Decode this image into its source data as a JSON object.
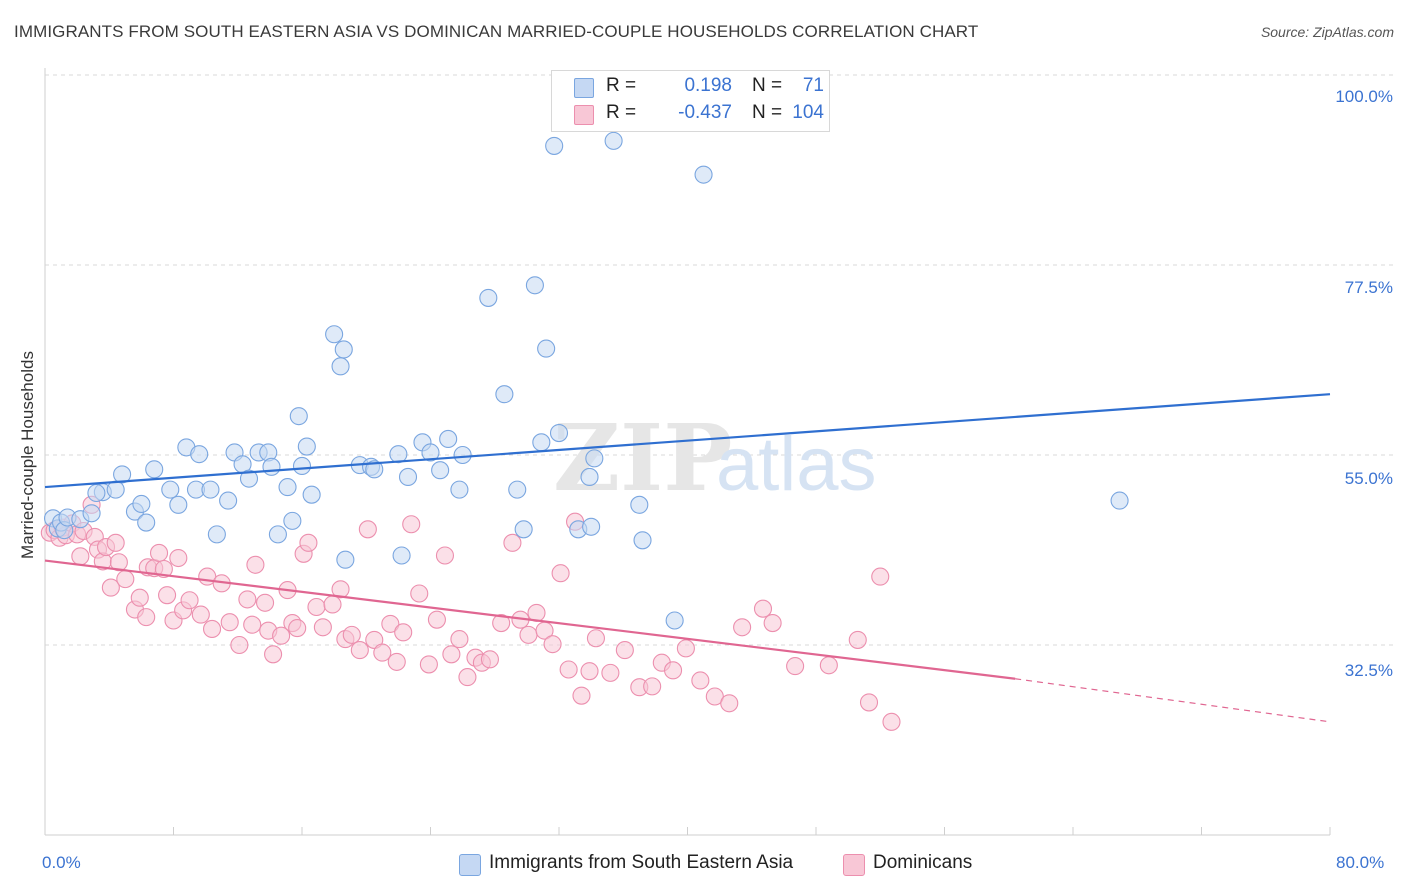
{
  "title": "IMMIGRANTS FROM SOUTH EASTERN ASIA VS DOMINICAN MARRIED-COUPLE HOUSEHOLDS CORRELATION CHART",
  "source": "Source: ZipAtlas.com",
  "watermark": {
    "zip": "ZIP",
    "atlas": "atlas"
  },
  "legend": {
    "rows": [
      {
        "r_label": "R =",
        "r_value": "0.198",
        "n_label": "N =",
        "n_value": "71"
      },
      {
        "r_label": "R =",
        "r_value": "-0.437",
        "n_label": "N =",
        "n_value": "104"
      }
    ]
  },
  "colors": {
    "blue_fill": "#c5d8f3",
    "blue_stroke": "#7aa6e0",
    "blue_line": "#2f6fd0",
    "pink_fill": "#f8c7d6",
    "pink_stroke": "#ec8fae",
    "pink_line": "#e06691",
    "grid": "#d9d9d9",
    "tick_text": "#3b73d1"
  },
  "chart_data": {
    "type": "scatter",
    "title": "IMMIGRANTS FROM SOUTH EASTERN ASIA VS DOMINICAN MARRIED-COUPLE HOUSEHOLDS CORRELATION CHART",
    "xlabel": "",
    "ylabel": "Married-couple Households",
    "xlim": [
      0,
      80
    ],
    "ylim": [
      10,
      100
    ],
    "x_tick_labels": [
      "0.0%",
      "80.0%"
    ],
    "y_tick_values": [
      32.5,
      55.0,
      77.5,
      100.0
    ],
    "y_tick_labels": [
      "32.5%",
      "55.0%",
      "77.5%",
      "100.0%"
    ],
    "grid": true,
    "legend_position": "top-center",
    "series": [
      {
        "name": "Immigrants from South Eastern Asia",
        "r": 0.198,
        "n": 71,
        "trend": {
          "x": [
            0,
            80
          ],
          "y": [
            51.2,
            62.2
          ]
        },
        "points": [
          [
            0.5,
            47.5
          ],
          [
            0.8,
            46.3
          ],
          [
            1.0,
            47.0
          ],
          [
            1.2,
            46.1
          ],
          [
            1.4,
            47.6
          ],
          [
            2.2,
            47.4
          ],
          [
            3.6,
            50.6
          ],
          [
            3.2,
            50.5
          ],
          [
            2.9,
            48.1
          ],
          [
            4.4,
            50.9
          ],
          [
            4.8,
            52.7
          ],
          [
            5.6,
            48.3
          ],
          [
            6.3,
            47.0
          ],
          [
            6.0,
            49.2
          ],
          [
            6.8,
            53.3
          ],
          [
            7.8,
            50.9
          ],
          [
            8.3,
            49.1
          ],
          [
            8.8,
            55.9
          ],
          [
            9.6,
            55.1
          ],
          [
            9.4,
            50.9
          ],
          [
            10.3,
            50.9
          ],
          [
            10.7,
            45.6
          ],
          [
            11.4,
            49.6
          ],
          [
            11.8,
            55.3
          ],
          [
            12.3,
            53.9
          ],
          [
            12.7,
            52.2
          ],
          [
            13.3,
            55.3
          ],
          [
            13.9,
            55.3
          ],
          [
            14.1,
            53.6
          ],
          [
            14.5,
            45.6
          ],
          [
            15.1,
            51.2
          ],
          [
            15.4,
            47.2
          ],
          [
            15.8,
            59.6
          ],
          [
            16.0,
            53.7
          ],
          [
            16.3,
            56.0
          ],
          [
            16.6,
            50.3
          ],
          [
            18.0,
            69.3
          ],
          [
            18.6,
            67.5
          ],
          [
            18.4,
            65.5
          ],
          [
            18.7,
            42.6
          ],
          [
            19.6,
            53.8
          ],
          [
            20.3,
            53.6
          ],
          [
            20.5,
            53.3
          ],
          [
            22.0,
            55.1
          ],
          [
            22.6,
            52.4
          ],
          [
            22.2,
            43.1
          ],
          [
            23.5,
            56.5
          ],
          [
            24.0,
            55.3
          ],
          [
            24.6,
            53.2
          ],
          [
            25.1,
            56.9
          ],
          [
            26.0,
            55.0
          ],
          [
            25.8,
            50.9
          ],
          [
            27.6,
            73.6
          ],
          [
            28.6,
            62.2
          ],
          [
            29.4,
            50.9
          ],
          [
            29.8,
            46.2
          ],
          [
            30.5,
            75.1
          ],
          [
            30.9,
            56.5
          ],
          [
            31.2,
            67.6
          ],
          [
            31.7,
            91.6
          ],
          [
            32.0,
            57.6
          ],
          [
            33.2,
            46.2
          ],
          [
            33.9,
            52.4
          ],
          [
            34.0,
            46.5
          ],
          [
            34.2,
            54.6
          ],
          [
            35.4,
            92.2
          ],
          [
            37.0,
            49.1
          ],
          [
            37.2,
            44.9
          ],
          [
            39.2,
            35.4
          ],
          [
            41.0,
            88.2
          ],
          [
            66.9,
            49.6
          ]
        ]
      },
      {
        "name": "Dominicans",
        "r": -0.437,
        "n": 104,
        "trend": {
          "x": [
            0,
            60.4
          ],
          "y": [
            42.5,
            28.5
          ]
        },
        "trend_dashed": {
          "x": [
            60.4,
            80
          ],
          "y": [
            28.5,
            23.4
          ]
        },
        "points": [
          [
            0.3,
            45.8
          ],
          [
            0.6,
            46.1
          ],
          [
            0.9,
            45.2
          ],
          [
            1.1,
            46.4
          ],
          [
            1.3,
            45.5
          ],
          [
            1.7,
            46.9
          ],
          [
            2.0,
            45.6
          ],
          [
            2.4,
            46.0
          ],
          [
            2.2,
            43.0
          ],
          [
            2.9,
            49.1
          ],
          [
            3.1,
            45.3
          ],
          [
            3.3,
            43.8
          ],
          [
            3.6,
            42.4
          ],
          [
            3.8,
            44.1
          ],
          [
            4.1,
            39.3
          ],
          [
            4.4,
            44.6
          ],
          [
            4.6,
            42.3
          ],
          [
            5.0,
            40.3
          ],
          [
            5.6,
            36.7
          ],
          [
            5.9,
            38.1
          ],
          [
            6.3,
            35.8
          ],
          [
            6.4,
            41.7
          ],
          [
            6.8,
            41.6
          ],
          [
            7.1,
            43.4
          ],
          [
            7.4,
            41.5
          ],
          [
            7.6,
            38.4
          ],
          [
            8.0,
            35.4
          ],
          [
            8.3,
            42.8
          ],
          [
            8.6,
            36.6
          ],
          [
            9.0,
            37.8
          ],
          [
            9.7,
            36.1
          ],
          [
            10.1,
            40.6
          ],
          [
            10.4,
            34.4
          ],
          [
            11.0,
            39.8
          ],
          [
            11.5,
            35.2
          ],
          [
            12.1,
            32.5
          ],
          [
            12.6,
            37.9
          ],
          [
            12.9,
            34.9
          ],
          [
            13.1,
            42.0
          ],
          [
            13.7,
            37.5
          ],
          [
            13.9,
            34.2
          ],
          [
            14.2,
            31.4
          ],
          [
            14.7,
            33.6
          ],
          [
            15.1,
            39.0
          ],
          [
            15.4,
            35.1
          ],
          [
            15.7,
            34.5
          ],
          [
            16.1,
            43.3
          ],
          [
            16.4,
            44.6
          ],
          [
            16.9,
            37.0
          ],
          [
            17.3,
            34.6
          ],
          [
            17.9,
            37.3
          ],
          [
            18.4,
            39.1
          ],
          [
            18.7,
            33.2
          ],
          [
            19.1,
            33.7
          ],
          [
            19.6,
            31.9
          ],
          [
            20.1,
            46.2
          ],
          [
            20.5,
            33.1
          ],
          [
            21.0,
            31.6
          ],
          [
            21.5,
            35.0
          ],
          [
            21.9,
            30.5
          ],
          [
            22.3,
            34.0
          ],
          [
            22.8,
            46.8
          ],
          [
            23.3,
            38.6
          ],
          [
            23.9,
            30.2
          ],
          [
            24.4,
            35.5
          ],
          [
            24.9,
            43.1
          ],
          [
            25.3,
            31.4
          ],
          [
            25.8,
            33.2
          ],
          [
            26.3,
            28.7
          ],
          [
            26.8,
            31.0
          ],
          [
            27.2,
            30.4
          ],
          [
            27.7,
            30.8
          ],
          [
            28.4,
            35.1
          ],
          [
            29.1,
            44.6
          ],
          [
            29.6,
            35.5
          ],
          [
            30.1,
            33.7
          ],
          [
            30.6,
            36.3
          ],
          [
            31.1,
            34.2
          ],
          [
            31.6,
            32.6
          ],
          [
            32.1,
            41.0
          ],
          [
            32.6,
            29.6
          ],
          [
            33.0,
            47.1
          ],
          [
            33.4,
            26.5
          ],
          [
            33.9,
            29.4
          ],
          [
            34.3,
            33.3
          ],
          [
            35.2,
            29.2
          ],
          [
            36.1,
            31.9
          ],
          [
            37.0,
            27.5
          ],
          [
            37.8,
            27.6
          ],
          [
            38.4,
            30.4
          ],
          [
            39.1,
            29.5
          ],
          [
            39.9,
            32.1
          ],
          [
            40.8,
            28.3
          ],
          [
            41.7,
            26.4
          ],
          [
            42.6,
            25.6
          ],
          [
            43.4,
            34.6
          ],
          [
            44.7,
            36.8
          ],
          [
            45.3,
            35.1
          ],
          [
            46.7,
            30.0
          ],
          [
            48.8,
            30.1
          ],
          [
            50.6,
            33.1
          ],
          [
            51.3,
            25.7
          ],
          [
            52.0,
            40.6
          ],
          [
            52.7,
            23.4
          ]
        ]
      }
    ]
  }
}
